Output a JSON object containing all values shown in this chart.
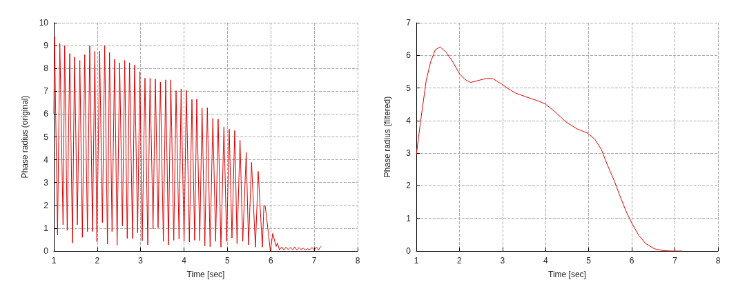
{
  "chart_data": [
    {
      "type": "line",
      "xlabel": "Time [sec]",
      "ylabel": "Phase radius (original)",
      "xlim": [
        1,
        8
      ],
      "xticks": [
        1,
        2,
        3,
        4,
        5,
        6,
        7,
        8
      ],
      "ylim": [
        0,
        10
      ],
      "yticks": [
        0,
        1,
        2,
        3,
        4,
        5,
        6,
        7,
        8,
        9,
        10
      ],
      "grid": true,
      "marker": "none",
      "line_style": "solid",
      "series": [
        {
          "color": "#e00000",
          "x": [
            1.0,
            1.016,
            1.085,
            1.138,
            1.212,
            1.249,
            1.308,
            1.366,
            1.429,
            1.477,
            1.541,
            1.599,
            1.657,
            1.711,
            1.774,
            1.827,
            1.891,
            1.944,
            1.992,
            2.055,
            2.119,
            2.172,
            2.235,
            2.283,
            2.341,
            2.4,
            2.458,
            2.516,
            2.58,
            2.633,
            2.691,
            2.744,
            2.813,
            2.861,
            2.93,
            2.983,
            3.036,
            3.1,
            3.164,
            3.217,
            3.286,
            3.339,
            3.402,
            3.455,
            3.524,
            3.577,
            3.641,
            3.694,
            3.763,
            3.816,
            3.885,
            3.932,
            4.001,
            4.054,
            4.123,
            4.182,
            4.245,
            4.293,
            4.362,
            4.415,
            4.479,
            4.537,
            4.6,
            4.664,
            4.728,
            4.786,
            4.85,
            4.919,
            4.982,
            5.041,
            5.104,
            5.168,
            5.221,
            5.29,
            5.353,
            5.433,
            5.486,
            5.555,
            5.645,
            5.709,
            5.804,
            5.84,
            5.868,
            5.9,
            5.99,
            6.043,
            6.122,
            6.15,
            6.2,
            6.25,
            6.3,
            6.35,
            6.4,
            6.45,
            6.5,
            6.55,
            6.6,
            6.65,
            6.7,
            6.75,
            6.8,
            6.85,
            6.9,
            6.95,
            7.0,
            7.05,
            7.1,
            7.15
          ],
          "values": [
            6.0,
            9.4,
            0.7,
            9.1,
            1.15,
            9.0,
            0.9,
            8.65,
            0.35,
            8.5,
            1.15,
            8.35,
            0.6,
            8.6,
            0.85,
            9.0,
            0.85,
            8.75,
            0.4,
            8.75,
            1.25,
            9.0,
            0.3,
            8.7,
            0.85,
            8.4,
            0.25,
            8.25,
            1.1,
            8.35,
            0.55,
            8.25,
            0.55,
            8.15,
            0.8,
            7.85,
            0.45,
            7.57,
            0.27,
            7.57,
            0.97,
            7.54,
            1.02,
            7.4,
            0.42,
            7.5,
            0.27,
            7.5,
            0.47,
            7.02,
            0.52,
            7.1,
            0.42,
            7.04,
            0.39,
            6.64,
            0.47,
            6.65,
            0.45,
            6.26,
            0.22,
            6.28,
            0.19,
            5.81,
            0.42,
            5.78,
            0.17,
            5.43,
            0.42,
            5.34,
            0.57,
            5.28,
            0.32,
            4.85,
            0.42,
            4.32,
            0.27,
            3.88,
            0.17,
            3.49,
            0.17,
            1.98,
            1.98,
            1.5,
            0.0,
            0.77,
            0.2,
            0.35,
            0.05,
            0.18,
            0.04,
            0.17,
            0.06,
            0.16,
            0.05,
            0.18,
            0.04,
            0.15,
            0.06,
            0.12,
            0.05,
            0.1,
            0.06,
            0.15,
            0.04,
            0.17,
            0.05,
            0.2
          ]
        }
      ]
    },
    {
      "type": "line",
      "xlabel": "Time [sec]",
      "ylabel": "Phase radius (filtered)",
      "xlim": [
        1,
        8
      ],
      "xticks": [
        1,
        2,
        3,
        4,
        5,
        6,
        7,
        8
      ],
      "ylim": [
        0,
        7
      ],
      "yticks": [
        0,
        1,
        2,
        3,
        4,
        5,
        6,
        7
      ],
      "grid": true,
      "marker": "none",
      "line_style": "solid",
      "series": [
        {
          "color": "#e00000",
          "x": [
            1.0,
            1.1,
            1.23,
            1.33,
            1.44,
            1.55,
            1.69,
            1.85,
            2.0,
            2.13,
            2.26,
            2.41,
            2.62,
            2.77,
            2.98,
            3.13,
            3.31,
            3.54,
            3.85,
            4.0,
            4.21,
            4.47,
            4.72,
            4.98,
            5.14,
            5.29,
            5.44,
            5.6,
            5.75,
            5.88,
            6.01,
            6.16,
            6.32,
            6.52,
            6.73,
            6.93,
            7.16
          ],
          "values": [
            2.94,
            3.99,
            5.23,
            5.79,
            6.17,
            6.26,
            6.1,
            5.79,
            5.44,
            5.26,
            5.17,
            5.22,
            5.29,
            5.29,
            5.12,
            4.98,
            4.84,
            4.73,
            4.59,
            4.5,
            4.28,
            3.96,
            3.75,
            3.61,
            3.43,
            3.12,
            2.62,
            2.13,
            1.6,
            1.18,
            0.83,
            0.48,
            0.23,
            0.07,
            0.01,
            0,
            0
          ]
        }
      ]
    }
  ]
}
